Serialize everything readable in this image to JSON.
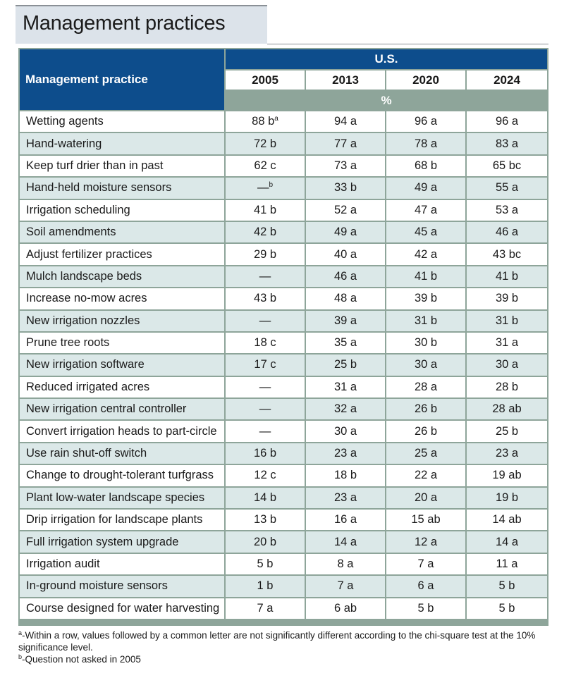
{
  "title": "Management practices",
  "table": {
    "row_header": "Management practice",
    "group_header": "U.S.",
    "years": [
      "2005",
      "2013",
      "2020",
      "2024"
    ],
    "unit": "%",
    "rows": [
      {
        "label": "Wetting agents",
        "values": [
          {
            "v": "88 b",
            "sup": "a"
          },
          {
            "v": "94 a",
            "sup": ""
          },
          {
            "v": "96 a",
            "sup": ""
          },
          {
            "v": "96 a",
            "sup": ""
          }
        ]
      },
      {
        "label": "Hand-watering",
        "values": [
          {
            "v": "72 b",
            "sup": ""
          },
          {
            "v": "77 a",
            "sup": ""
          },
          {
            "v": "78 a",
            "sup": ""
          },
          {
            "v": "83 a",
            "sup": ""
          }
        ]
      },
      {
        "label": "Keep turf drier than in past",
        "values": [
          {
            "v": "62 c",
            "sup": ""
          },
          {
            "v": "73 a",
            "sup": ""
          },
          {
            "v": "68 b",
            "sup": ""
          },
          {
            "v": "65 bc",
            "sup": ""
          }
        ]
      },
      {
        "label": "Hand-held moisture sensors",
        "values": [
          {
            "v": "—",
            "sup": "b"
          },
          {
            "v": "33 b",
            "sup": ""
          },
          {
            "v": "49 a",
            "sup": ""
          },
          {
            "v": "55 a",
            "sup": ""
          }
        ]
      },
      {
        "label": "Irrigation scheduling",
        "values": [
          {
            "v": "41 b",
            "sup": ""
          },
          {
            "v": "52 a",
            "sup": ""
          },
          {
            "v": "47 a",
            "sup": ""
          },
          {
            "v": "53 a",
            "sup": ""
          }
        ]
      },
      {
        "label": "Soil amendments",
        "values": [
          {
            "v": "42 b",
            "sup": ""
          },
          {
            "v": "49 a",
            "sup": ""
          },
          {
            "v": "45 a",
            "sup": ""
          },
          {
            "v": "46 a",
            "sup": ""
          }
        ]
      },
      {
        "label": "Adjust fertilizer practices",
        "values": [
          {
            "v": "29 b",
            "sup": ""
          },
          {
            "v": "40 a",
            "sup": ""
          },
          {
            "v": "42 a",
            "sup": ""
          },
          {
            "v": "43 bc",
            "sup": ""
          }
        ]
      },
      {
        "label": "Mulch landscape beds",
        "values": [
          {
            "v": "—",
            "sup": ""
          },
          {
            "v": "46 a",
            "sup": ""
          },
          {
            "v": "41 b",
            "sup": ""
          },
          {
            "v": "41 b",
            "sup": ""
          }
        ]
      },
      {
        "label": "Increase no-mow acres",
        "values": [
          {
            "v": "43 b",
            "sup": ""
          },
          {
            "v": "48 a",
            "sup": ""
          },
          {
            "v": "39 b",
            "sup": ""
          },
          {
            "v": "39 b",
            "sup": ""
          }
        ]
      },
      {
        "label": "New irrigation nozzles",
        "values": [
          {
            "v": "—",
            "sup": ""
          },
          {
            "v": "39 a",
            "sup": ""
          },
          {
            "v": "31 b",
            "sup": ""
          },
          {
            "v": "31 b",
            "sup": ""
          }
        ]
      },
      {
        "label": "Prune tree roots",
        "values": [
          {
            "v": "18 c",
            "sup": ""
          },
          {
            "v": "35 a",
            "sup": ""
          },
          {
            "v": "30 b",
            "sup": ""
          },
          {
            "v": "31 a",
            "sup": ""
          }
        ]
      },
      {
        "label": "New irrigation software",
        "values": [
          {
            "v": "17 c",
            "sup": ""
          },
          {
            "v": "25 b",
            "sup": ""
          },
          {
            "v": "30 a",
            "sup": ""
          },
          {
            "v": "30 a",
            "sup": ""
          }
        ]
      },
      {
        "label": "Reduced irrigated acres",
        "values": [
          {
            "v": "—",
            "sup": ""
          },
          {
            "v": "31 a",
            "sup": ""
          },
          {
            "v": "28 a",
            "sup": ""
          },
          {
            "v": "28 b",
            "sup": ""
          }
        ]
      },
      {
        "label": "New irrigation central controller",
        "values": [
          {
            "v": "—",
            "sup": ""
          },
          {
            "v": "32 a",
            "sup": ""
          },
          {
            "v": "26 b",
            "sup": ""
          },
          {
            "v": "28 ab",
            "sup": ""
          }
        ]
      },
      {
        "label": "Convert irrigation heads to part-circle",
        "values": [
          {
            "v": "—",
            "sup": ""
          },
          {
            "v": "30 a",
            "sup": ""
          },
          {
            "v": "26 b",
            "sup": ""
          },
          {
            "v": "25 b",
            "sup": ""
          }
        ]
      },
      {
        "label": "Use rain shut-off switch",
        "values": [
          {
            "v": "16 b",
            "sup": ""
          },
          {
            "v": "23 a",
            "sup": ""
          },
          {
            "v": "25 a",
            "sup": ""
          },
          {
            "v": "23 a",
            "sup": ""
          }
        ]
      },
      {
        "label": "Change to drought-tolerant turfgrass",
        "values": [
          {
            "v": "12 c",
            "sup": ""
          },
          {
            "v": "18 b",
            "sup": ""
          },
          {
            "v": "22 a",
            "sup": ""
          },
          {
            "v": "19 ab",
            "sup": ""
          }
        ]
      },
      {
        "label": "Plant low-water landscape species",
        "values": [
          {
            "v": "14 b",
            "sup": ""
          },
          {
            "v": "23 a",
            "sup": ""
          },
          {
            "v": "20 a",
            "sup": ""
          },
          {
            "v": "19 b",
            "sup": ""
          }
        ]
      },
      {
        "label": "Drip irrigation for landscape plants",
        "values": [
          {
            "v": "13 b",
            "sup": ""
          },
          {
            "v": "16 a",
            "sup": ""
          },
          {
            "v": "15 ab",
            "sup": ""
          },
          {
            "v": "14 ab",
            "sup": ""
          }
        ]
      },
      {
        "label": "Full irrigation system upgrade",
        "values": [
          {
            "v": "20 b",
            "sup": ""
          },
          {
            "v": "14 a",
            "sup": ""
          },
          {
            "v": "12 a",
            "sup": ""
          },
          {
            "v": "14 a",
            "sup": ""
          }
        ]
      },
      {
        "label": "Irrigation audit",
        "values": [
          {
            "v": "5 b",
            "sup": ""
          },
          {
            "v": "8 a",
            "sup": ""
          },
          {
            "v": "7 a",
            "sup": ""
          },
          {
            "v": "11 a",
            "sup": ""
          }
        ]
      },
      {
        "label": "In-ground moisture sensors",
        "values": [
          {
            "v": "1 b",
            "sup": ""
          },
          {
            "v": "7 a",
            "sup": ""
          },
          {
            "v": "6 a",
            "sup": ""
          },
          {
            "v": "5 b",
            "sup": ""
          }
        ]
      },
      {
        "label": "Course designed for water harvesting",
        "values": [
          {
            "v": "7 a",
            "sup": ""
          },
          {
            "v": "6 ab",
            "sup": ""
          },
          {
            "v": "5 b",
            "sup": ""
          },
          {
            "v": "5 b",
            "sup": ""
          }
        ]
      }
    ]
  },
  "footnotes": [
    {
      "mark": "a",
      "text": "-Within a row, values followed by a common letter are not significantly different according to the chi-square test at the 10% significance level."
    },
    {
      "mark": "b",
      "text": "-Question not asked in 2005"
    }
  ],
  "colors": {
    "header_blue": "#0d4d8c",
    "frame_green": "#8ea59a",
    "row_alt": "#dbe8e8",
    "title_bg": "#dce3ea"
  }
}
